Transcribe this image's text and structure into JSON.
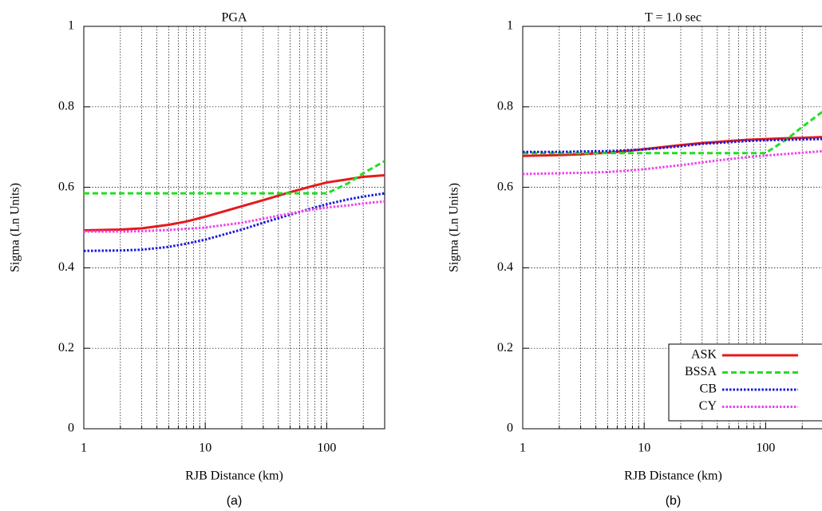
{
  "chart_data": [
    {
      "type": "line",
      "title": "PGA",
      "xlabel": "RJB Distance (km)",
      "ylabel": "Sigma (Ln Units)",
      "caption": "(a)",
      "xscale": "log",
      "grid": true,
      "xlim": [
        1,
        300
      ],
      "ylim": [
        0,
        1
      ],
      "xticks": [
        1,
        10,
        100
      ],
      "xminorticks": [
        2,
        3,
        4,
        5,
        6,
        7,
        8,
        9,
        20,
        30,
        40,
        50,
        60,
        70,
        80,
        90,
        200,
        300
      ],
      "yticks": [
        0,
        0.2,
        0.4,
        0.6,
        0.8,
        1
      ],
      "x": [
        1,
        2,
        3,
        5,
        7,
        10,
        20,
        30,
        50,
        70,
        100,
        150,
        200,
        300
      ],
      "series": [
        {
          "name": "ASK",
          "color": "#e41a1c",
          "dash": "solid",
          "values": [
            0.493,
            0.495,
            0.498,
            0.507,
            0.515,
            0.527,
            0.553,
            0.568,
            0.588,
            0.6,
            0.612,
            0.62,
            0.626,
            0.63
          ]
        },
        {
          "name": "BSSA",
          "color": "#22dd22",
          "dash": "dashed",
          "values": [
            0.585,
            0.585,
            0.585,
            0.585,
            0.585,
            0.585,
            0.585,
            0.585,
            0.585,
            0.585,
            0.585,
            0.61,
            0.635,
            0.665
          ]
        },
        {
          "name": "CB",
          "color": "#1a1adc",
          "dash": "dotted",
          "values": [
            0.442,
            0.443,
            0.445,
            0.452,
            0.46,
            0.47,
            0.495,
            0.512,
            0.532,
            0.545,
            0.558,
            0.57,
            0.577,
            0.585
          ]
        },
        {
          "name": "CY",
          "color": "#ee44ee",
          "dash": "dotted",
          "values": [
            0.49,
            0.49,
            0.491,
            0.494,
            0.497,
            0.5,
            0.512,
            0.522,
            0.535,
            0.543,
            0.55,
            0.555,
            0.56,
            0.565
          ]
        }
      ]
    },
    {
      "type": "line",
      "title": "T = 1.0 sec",
      "xlabel": "RJB Distance (km)",
      "ylabel": "Sigma (Ln Units)",
      "caption": "(b)",
      "xscale": "log",
      "grid": true,
      "legend": "lower right",
      "xlim": [
        1,
        300
      ],
      "ylim": [
        0,
        1
      ],
      "xticks": [
        1,
        10,
        100
      ],
      "xminorticks": [
        2,
        3,
        4,
        5,
        6,
        7,
        8,
        9,
        20,
        30,
        40,
        50,
        60,
        70,
        80,
        90,
        200,
        300
      ],
      "yticks": [
        0,
        0.2,
        0.4,
        0.6,
        0.8,
        1
      ],
      "x": [
        1,
        2,
        3,
        5,
        7,
        10,
        20,
        30,
        50,
        70,
        100,
        150,
        200,
        300
      ],
      "series": [
        {
          "name": "ASK",
          "color": "#e41a1c",
          "dash": "solid",
          "values": [
            0.678,
            0.68,
            0.682,
            0.686,
            0.69,
            0.695,
            0.705,
            0.71,
            0.715,
            0.718,
            0.72,
            0.722,
            0.723,
            0.725
          ]
        },
        {
          "name": "BSSA",
          "color": "#22dd22",
          "dash": "dashed",
          "values": [
            0.685,
            0.685,
            0.685,
            0.685,
            0.685,
            0.685,
            0.685,
            0.685,
            0.685,
            0.685,
            0.685,
            0.72,
            0.75,
            0.79
          ]
        },
        {
          "name": "CB",
          "color": "#1a1adc",
          "dash": "dotted",
          "values": [
            0.688,
            0.688,
            0.689,
            0.69,
            0.692,
            0.694,
            0.702,
            0.708,
            0.712,
            0.715,
            0.717,
            0.718,
            0.719,
            0.72
          ]
        },
        {
          "name": "CY",
          "color": "#ee44ee",
          "dash": "dotted",
          "values": [
            0.633,
            0.635,
            0.636,
            0.638,
            0.641,
            0.645,
            0.655,
            0.662,
            0.67,
            0.675,
            0.679,
            0.683,
            0.686,
            0.69
          ]
        }
      ]
    }
  ]
}
